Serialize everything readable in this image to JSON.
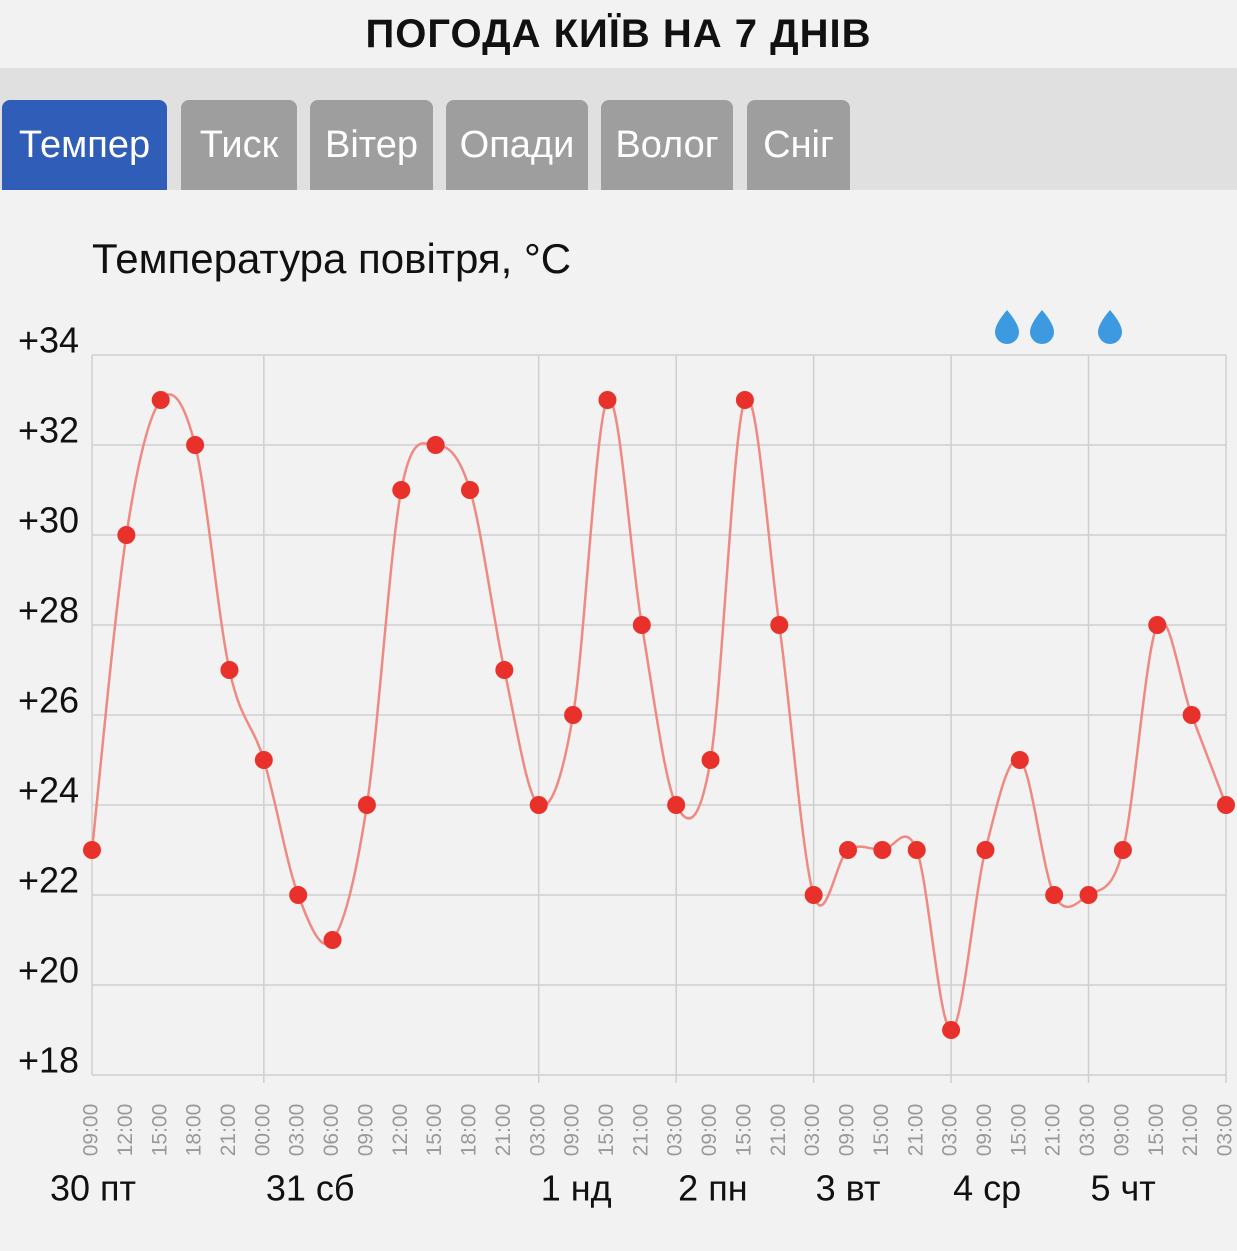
{
  "header": {
    "title": "ПОГОДА КИЇВ НА 7 ДНІВ"
  },
  "tabs": [
    "Темпер",
    "Тиск",
    "Вітер",
    "Опади",
    "Волог",
    "Сніг"
  ],
  "chart_data": {
    "type": "line",
    "title": "Температура повітря, °C",
    "categories": [
      "09:00",
      "12:00",
      "15:00",
      "18:00",
      "21:00",
      "00:00",
      "03:00",
      "06:00",
      "09:00",
      "12:00",
      "15:00",
      "18:00",
      "21:00",
      "03:00",
      "09:00",
      "15:00",
      "21:00",
      "03:00",
      "09:00",
      "15:00",
      "21:00",
      "03:00",
      "09:00",
      "15:00",
      "21:00",
      "03:00",
      "09:00",
      "15:00",
      "21:00",
      "03:00",
      "09:00",
      "15:00",
      "21:00",
      "03:00"
    ],
    "values": [
      23,
      30,
      33,
      32,
      27,
      25,
      22,
      21,
      24,
      31,
      32,
      31,
      27,
      24,
      26,
      33,
      28,
      24,
      25,
      33,
      28,
      22,
      23,
      23,
      23,
      19,
      23,
      25,
      22,
      22,
      23,
      28,
      26,
      24
    ],
    "color": "#e8312a",
    "line_color": "#ee8a82",
    "days": [
      "30 пт",
      "31 сб",
      "1 нд",
      "2 пн",
      "3 вт",
      "4 ср",
      "5 чт"
    ],
    "ylim": [
      18,
      34
    ],
    "yticks": [
      {
        "value": 18,
        "label": "+18"
      },
      {
        "value": 20,
        "label": "+20"
      },
      {
        "value": 22,
        "label": "+22"
      },
      {
        "value": 24,
        "label": "+24"
      },
      {
        "value": 26,
        "label": "+26"
      },
      {
        "value": 28,
        "label": "+28"
      },
      {
        "value": 30,
        "label": "+30"
      },
      {
        "value": 32,
        "label": "+32"
      },
      {
        "value": 34,
        "label": "+34"
      }
    ],
    "grid": true
  }
}
